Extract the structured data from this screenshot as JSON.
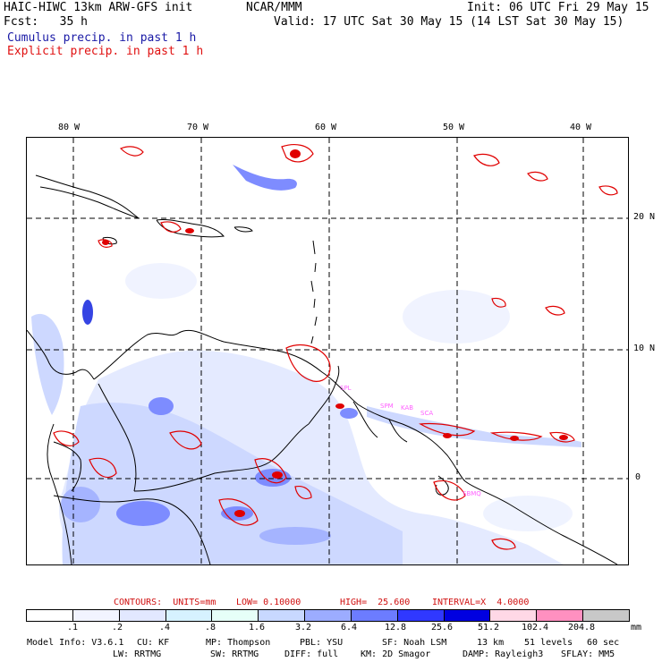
{
  "header": {
    "model_title": "HAIC-HIWC 13km ARW-GFS init",
    "org": "NCAR/MMM",
    "init": "Init: 06 UTC Fri 29 May 15",
    "fcst": "Fcst:   35 h",
    "valid": "Valid: 17 UTC Sat 30 May 15 (14 LST Sat 30 May 15)",
    "cumulus_label": "Cumulus precip. in past 1 h",
    "explicit_label": "Explicit precip. in past 1 h"
  },
  "map": {
    "lon_labels": [
      "80 W",
      "70 W",
      "60 W",
      "50 W",
      "40 W"
    ],
    "lat_labels": [
      "20 N",
      "10 N",
      "0"
    ],
    "colors": {
      "coast": "#000000",
      "grid": "#000000",
      "cumulus_light": "#c8d4ff",
      "cumulus_mid": "#7080ff",
      "cumulus_dark": "#2030e0",
      "explicit_contour": "#e00000",
      "station_markers": "#ff60ff"
    },
    "station_marker_text": [
      "SPL",
      "SPM",
      "KAB",
      "SCA",
      "SBMQ"
    ]
  },
  "contours": {
    "units": "CONTOURS:  UNITS=mm",
    "low": "LOW= 0.10000",
    "high": "HIGH=  25.600",
    "interval": "INTERVAL=X  4.0000"
  },
  "colorbar": {
    "colors": [
      "#ffffff",
      "#f2f4ff",
      "#e2e8ff",
      "#d6f2ff",
      "#e6fff8",
      "#c8d8ff",
      "#9cacff",
      "#6c7cff",
      "#3038ff",
      "#0000e0",
      "#ffd8e6",
      "#ff90c0",
      "#c8c8c8",
      "#707070",
      "#303030",
      "#d0a8ff"
    ],
    "ticks": [
      ".1",
      ".2",
      ".4",
      ".8",
      "1.6",
      "3.2",
      "6.4",
      "12.8",
      "25.6",
      "51.2",
      "102.4",
      "204.8"
    ],
    "unit": "mm"
  },
  "footer": {
    "line1": [
      "Model Info: V3.6.1",
      "CU: KF",
      "MP: Thompson",
      "PBL: YSU",
      "SF: Noah LSM",
      "13 km",
      "51 levels",
      "60 sec"
    ],
    "line2": [
      "LW: RRTMG",
      "SW: RRTMG",
      "DIFF: full",
      "KM: 2D Smagor",
      "DAMP: Rayleigh3",
      "SFLAY: MM5"
    ]
  }
}
